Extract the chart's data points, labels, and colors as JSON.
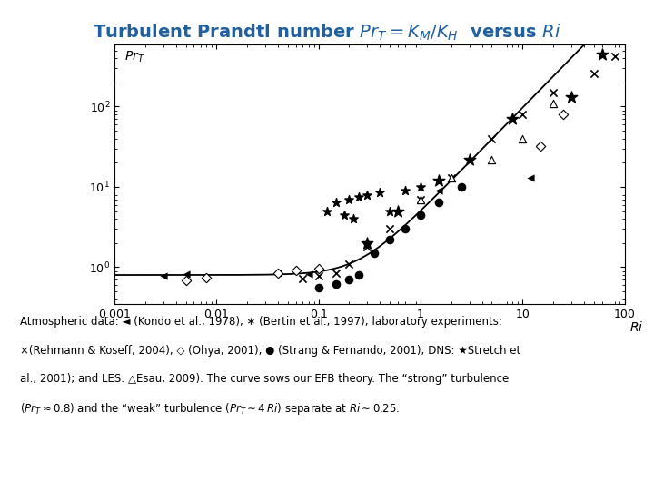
{
  "title": "Turbulent Prandtl number $Pr_T = K_M/K_H$  versus $Ri$",
  "title_color": "#2060a0",
  "xlim": [
    0.001,
    100
  ],
  "ylim": [
    0.35,
    600
  ],
  "bg_color": "#ffffff",
  "annotation_line1": "Atmospheric data: ◄ (Kondo et al., 1978), ∗ (Bertin et al., 1997); laboratory experiments:",
  "annotation_line2": "×(Rehmann & Koseff, 2004), ◇ (Ohya, 2001), ● (Strang & Fernando, 2001); DNS: ★Stretch et",
  "annotation_line3": "al., 2001); and LES: △Esau, 2009). The curve sows our EFB theory. The “strong” turbulence",
  "annotation_line4": "($Pr_T\\approx 0.8$) and the “weak” turbulence ($Pr_T \\sim 4\\,Ri$) separate at $Ri \\sim 0.25$.",
  "kondo_ri": [
    0.003,
    0.005,
    0.04,
    0.08,
    1.5,
    12
  ],
  "kondo_pr": [
    0.78,
    0.82,
    0.85,
    0.82,
    9.0,
    13
  ],
  "bertin_ri": [
    0.12,
    0.15,
    0.18,
    0.2,
    0.22,
    0.25,
    0.3,
    0.4,
    0.5,
    0.7,
    1.0
  ],
  "bertin_pr": [
    5.0,
    6.5,
    4.5,
    7.0,
    4.0,
    7.5,
    8.0,
    8.5,
    5.0,
    9.0,
    10.0
  ],
  "rehmann_ri": [
    0.07,
    0.1,
    0.15,
    0.2,
    0.3,
    0.5,
    1.0,
    2.0,
    5.0,
    10.0,
    20.0,
    50.0,
    80.0
  ],
  "rehmann_pr": [
    0.72,
    0.78,
    0.85,
    1.1,
    1.8,
    3.0,
    7.0,
    13.0,
    40.0,
    80.0,
    150.0,
    260.0,
    420.0
  ],
  "ohya_ri": [
    0.005,
    0.008,
    0.04,
    0.06,
    0.1,
    15.0,
    25.0
  ],
  "ohya_pr": [
    0.68,
    0.75,
    0.85,
    0.92,
    0.95,
    32.0,
    80.0
  ],
  "strang_ri": [
    0.1,
    0.15,
    0.2,
    0.25,
    0.35,
    0.5,
    0.7,
    1.0,
    1.5,
    2.5
  ],
  "strang_pr": [
    0.55,
    0.62,
    0.7,
    0.8,
    1.5,
    2.2,
    3.0,
    4.5,
    6.5,
    10.0
  ],
  "stretch_ri": [
    0.3,
    0.6,
    1.5,
    3.0,
    8.0,
    30.0,
    60.0
  ],
  "stretch_pr": [
    2.0,
    5.0,
    12.0,
    22.0,
    70.0,
    130.0,
    450.0
  ],
  "esau_ri": [
    1.0,
    2.0,
    5.0,
    10.0,
    20.0
  ],
  "esau_pr": [
    7.0,
    13.0,
    22.0,
    40.0,
    110.0
  ]
}
